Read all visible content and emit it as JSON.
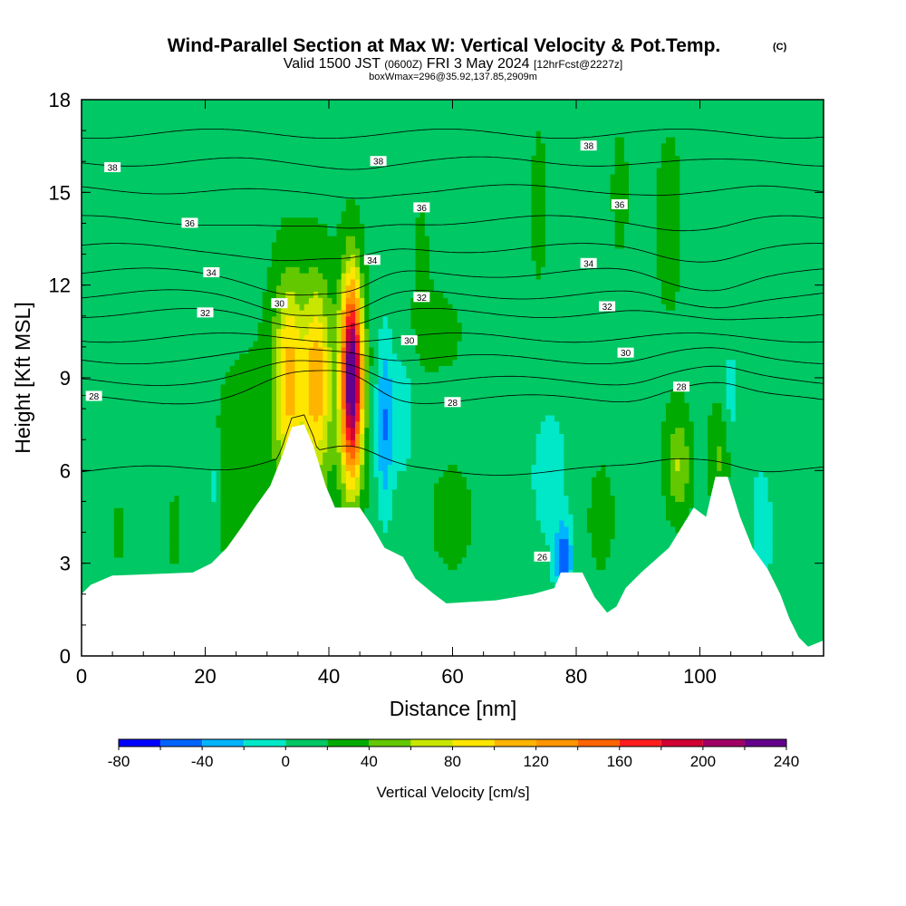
{
  "chart_data": {
    "type": "heatmap",
    "title": "Wind-Parallel Section at Max W: Vertical Velocity & Pot.Temp.",
    "title_mark": "(C)",
    "subtitle_a": "Valid 1500 JST",
    "subtitle_b": "(0600Z)",
    "subtitle_c": "FRI 3 May 2024",
    "subtitle_d": "[12hrFcst@2227z]",
    "subtitle2": "boxWmax=296@35.92,137.85,2909m",
    "xlabel": "Distance [nm]",
    "ylabel": "Height [Kft MSL]",
    "xlim": [
      0,
      120
    ],
    "ylim": [
      0,
      18
    ],
    "x_ticks": [
      0,
      20,
      40,
      60,
      80,
      100
    ],
    "x_tick_labels": [
      "0",
      "20",
      "40",
      "60",
      "80",
      "100"
    ],
    "y_ticks": [
      0,
      3,
      6,
      9,
      12,
      15,
      18
    ],
    "y_tick_labels": [
      "0",
      "3",
      "6",
      "9",
      "12",
      "15",
      "18"
    ],
    "colorbar": {
      "title": "Vertical Velocity [cm/s]",
      "min": -80,
      "max": 240,
      "step": 20,
      "tick_values": [
        -80,
        -40,
        0,
        40,
        80,
        120,
        160,
        200,
        240
      ],
      "tick_labels": [
        "-80",
        "-40",
        "0",
        "40",
        "80",
        "120",
        "160",
        "200",
        "240"
      ],
      "colors": [
        "#0000ff",
        "#0064ff",
        "#00b4ff",
        "#00e8c8",
        "#00c864",
        "#00aa00",
        "#64c800",
        "#c8e600",
        "#ffe600",
        "#ffb400",
        "#ff9600",
        "#ff6400",
        "#ff1e1e",
        "#d20032",
        "#a00064",
        "#64008c"
      ]
    },
    "background_value": 10,
    "w_features": [
      {
        "x": 33.5,
        "z": 9.0,
        "sx": 1.6,
        "sz": 2.2,
        "w": 78
      },
      {
        "x": 38.0,
        "z": 9.0,
        "sx": 1.5,
        "sz": 2.0,
        "w": 80
      },
      {
        "x": 43.7,
        "z": 9.0,
        "sx": 1.2,
        "sz": 2.2,
        "w": 230
      },
      {
        "x": 37.0,
        "z": 8.2,
        "sx": 6.0,
        "sz": 3.6,
        "w": 28
      },
      {
        "x": 25.0,
        "z": 6.0,
        "sx": 2.5,
        "sz": 2.2,
        "w": 26
      },
      {
        "x": 49.0,
        "z": 7.5,
        "sx": 1.0,
        "sz": 2.0,
        "w": -55
      },
      {
        "x": 52.0,
        "z": 7.8,
        "sx": 1.2,
        "sz": 1.5,
        "w": -25
      },
      {
        "x": 21.5,
        "z": 5.5,
        "sx": 0.6,
        "sz": 1.0,
        "w": -22
      },
      {
        "x": 78.0,
        "z": 3.2,
        "sx": 1.0,
        "sz": 0.8,
        "w": -65
      },
      {
        "x": 75.5,
        "z": 6.0,
        "sx": 2.5,
        "sz": 2.0,
        "w": -18
      },
      {
        "x": 96.5,
        "z": 6.2,
        "sx": 1.5,
        "sz": 1.2,
        "w": 50
      },
      {
        "x": 103.0,
        "z": 6.5,
        "sx": 1.2,
        "sz": 1.2,
        "w": 32
      },
      {
        "x": 105.0,
        "z": 8.5,
        "sx": 0.8,
        "sz": 1.0,
        "w": -20
      },
      {
        "x": 110.0,
        "z": 4.0,
        "sx": 1.2,
        "sz": 1.5,
        "w": -25
      },
      {
        "x": 87.0,
        "z": 15.0,
        "sx": 2.0,
        "sz": 3.0,
        "w": 12
      },
      {
        "x": 95.0,
        "z": 14.0,
        "sx": 2.5,
        "sz": 3.5,
        "w": 14
      },
      {
        "x": 74.0,
        "z": 14.5,
        "sx": 2.0,
        "sz": 4.0,
        "w": 12
      },
      {
        "x": 55.0,
        "z": 13.0,
        "sx": 1.5,
        "sz": 2.5,
        "w": 12
      },
      {
        "x": 58.0,
        "z": 10.5,
        "sx": 3.0,
        "sz": 1.0,
        "w": 18
      },
      {
        "x": 15.0,
        "z": 4.0,
        "sx": 1.0,
        "sz": 1.5,
        "w": 14
      },
      {
        "x": 6.0,
        "z": 4.0,
        "sx": 1.2,
        "sz": 1.5,
        "w": 12
      },
      {
        "x": 60.0,
        "z": 4.5,
        "sx": 4.0,
        "sz": 2.0,
        "w": 14
      },
      {
        "x": 84.0,
        "z": 4.5,
        "sx": 2.5,
        "sz": 2.0,
        "w": 14
      }
    ],
    "terrain": [
      [
        0,
        2.0
      ],
      [
        1.5,
        2.3
      ],
      [
        5,
        2.6
      ],
      [
        18,
        2.7
      ],
      [
        21,
        3.0
      ],
      [
        23.5,
        3.5
      ],
      [
        26,
        4.2
      ],
      [
        28,
        4.8
      ],
      [
        30.5,
        5.5
      ],
      [
        32.5,
        6.5
      ],
      [
        34,
        7.4
      ],
      [
        36,
        7.5
      ],
      [
        37.5,
        6.8
      ],
      [
        39.5,
        5.5
      ],
      [
        41,
        4.8
      ],
      [
        45,
        4.8
      ],
      [
        47,
        4.2
      ],
      [
        49,
        3.5
      ],
      [
        52,
        3.2
      ],
      [
        54,
        2.5
      ],
      [
        57,
        2.0
      ],
      [
        59,
        1.7
      ],
      [
        67,
        1.8
      ],
      [
        73,
        2.0
      ],
      [
        76.5,
        2.2
      ],
      [
        77.5,
        2.7
      ],
      [
        81,
        2.7
      ],
      [
        83,
        1.9
      ],
      [
        85,
        1.4
      ],
      [
        86.5,
        1.6
      ],
      [
        88,
        2.2
      ],
      [
        90.5,
        2.7
      ],
      [
        95,
        3.5
      ],
      [
        99,
        4.8
      ],
      [
        101,
        4.5
      ],
      [
        102.5,
        5.8
      ],
      [
        104.5,
        5.8
      ],
      [
        106.5,
        4.5
      ],
      [
        108.5,
        3.5
      ],
      [
        111,
        2.8
      ],
      [
        113,
        2.0
      ],
      [
        114.5,
        1.2
      ],
      [
        116,
        0.6
      ],
      [
        117.5,
        0.3
      ],
      [
        120,
        0.5
      ]
    ],
    "theta_contours": [
      {
        "base": 6.0,
        "amp": 0.6,
        "label": "26",
        "label_x": 74.5,
        "label_z": 3.2
      },
      {
        "base": 8.3,
        "amp": 0.7,
        "label": "28",
        "label_x": 2.0,
        "label_z": 8.4
      },
      {
        "base": 8.9,
        "amp": 0.5,
        "label": "",
        "label_x": null,
        "label_z": null
      },
      {
        "base": 9.6,
        "amp": 0.3,
        "label": "",
        "label_x": null,
        "label_z": null
      },
      {
        "base": 10.3,
        "amp": 0.0,
        "label": "30",
        "label_x": 88.0,
        "label_z": 9.8
      },
      {
        "base": 11.1,
        "amp": -0.3,
        "label": "32",
        "label_x": 20.0,
        "label_z": 11.1
      },
      {
        "base": 11.7,
        "amp": -0.5,
        "label": "",
        "label_x": null,
        "label_z": null
      },
      {
        "base": 12.4,
        "amp": -0.6,
        "label": "34",
        "label_x": 21.0,
        "label_z": 12.4
      },
      {
        "base": 13.2,
        "amp": -0.4,
        "label": "",
        "label_x": null,
        "label_z": null
      },
      {
        "base": 14.1,
        "amp": -0.3,
        "label": "36",
        "label_x": 17.5,
        "label_z": 14.0
      },
      {
        "base": 15.1,
        "amp": -0.2,
        "label": "",
        "label_x": null,
        "label_z": null
      },
      {
        "base": 16.0,
        "amp": -0.1,
        "label": "38",
        "label_x": 5.0,
        "label_z": 15.8
      },
      {
        "base": 16.9,
        "amp": 0.0,
        "label": "",
        "label_x": null,
        "label_z": null
      }
    ],
    "extra_contour_labels": [
      {
        "label": "30",
        "x": 32.0,
        "z": 11.4
      },
      {
        "label": "30",
        "x": 53.0,
        "z": 10.2
      },
      {
        "label": "28",
        "x": 60.0,
        "z": 8.2
      },
      {
        "label": "28",
        "x": 97.0,
        "z": 8.7
      },
      {
        "label": "32",
        "x": 55.0,
        "z": 11.6
      },
      {
        "label": "32",
        "x": 85.0,
        "z": 11.3
      },
      {
        "label": "34",
        "x": 47.0,
        "z": 12.8
      },
      {
        "label": "34",
        "x": 82.0,
        "z": 12.7
      },
      {
        "label": "36",
        "x": 55.0,
        "z": 14.5
      },
      {
        "label": "36",
        "x": 87.0,
        "z": 14.6
      },
      {
        "label": "38",
        "x": 48.0,
        "z": 16.0
      },
      {
        "label": "38",
        "x": 82.0,
        "z": 16.5
      }
    ]
  }
}
